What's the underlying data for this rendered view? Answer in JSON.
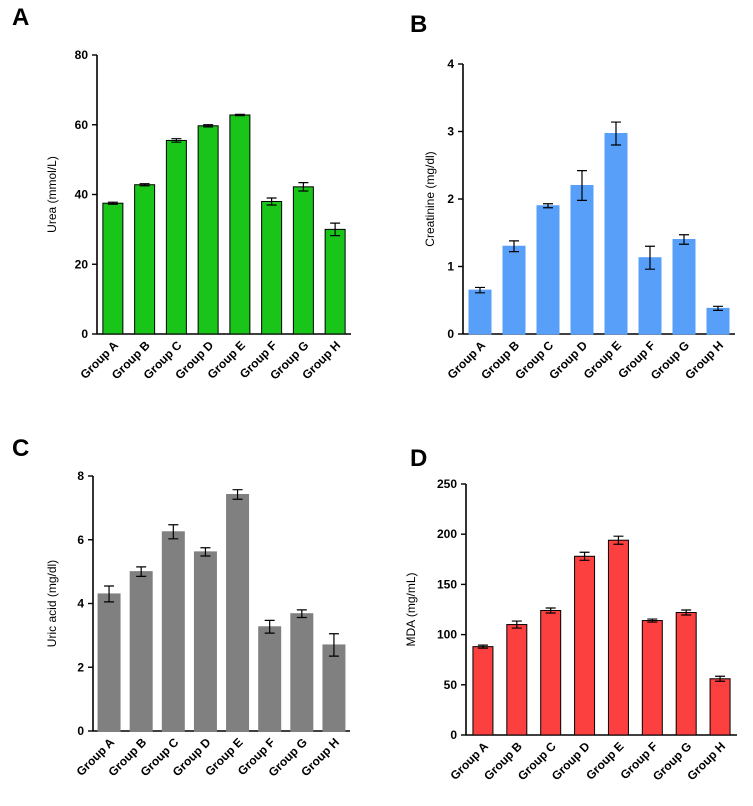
{
  "chart_data": [
    {
      "panel": "A",
      "type": "bar",
      "categories": [
        "Group A",
        "Group B",
        "Group C",
        "Group D",
        "Group E",
        "Group F",
        "Group G",
        "Group H"
      ],
      "values": [
        37.5,
        42.8,
        55.5,
        59.7,
        62.8,
        38.0,
        42.2,
        30.0
      ],
      "errors": [
        0.3,
        0.3,
        0.5,
        0.3,
        0.2,
        1.0,
        1.2,
        1.8
      ],
      "ylabel": "Urea  (mmol/L)",
      "ylim": [
        0,
        80
      ],
      "yticks": [
        0,
        20,
        40,
        60,
        80
      ],
      "bar_color": "#19c519",
      "bar_edge": "#000000"
    },
    {
      "panel": "B",
      "type": "bar",
      "categories": [
        "Group A",
        "Group B",
        "Group C",
        "Group D",
        "Group E",
        "Group F",
        "Group G",
        "Group H"
      ],
      "values": [
        0.65,
        1.3,
        1.9,
        2.2,
        2.97,
        1.13,
        1.4,
        0.38
      ],
      "errors": [
        0.04,
        0.08,
        0.03,
        0.22,
        0.17,
        0.17,
        0.07,
        0.03
      ],
      "ylabel": "Creatinine  (mg/dl)",
      "ylim": [
        0,
        4
      ],
      "yticks": [
        0,
        1,
        2,
        3,
        4
      ],
      "bar_color": "#579ff9",
      "bar_edge": "#579ff9"
    },
    {
      "panel": "C",
      "type": "bar",
      "categories": [
        "Group A",
        "Group B",
        "Group C",
        "Group D",
        "Group E",
        "Group F",
        "Group G",
        "Group H"
      ],
      "values": [
        4.3,
        5.0,
        6.25,
        5.62,
        7.42,
        3.27,
        3.68,
        2.7
      ],
      "errors": [
        0.25,
        0.15,
        0.22,
        0.13,
        0.15,
        0.2,
        0.12,
        0.35
      ],
      "ylabel": "Uric acid  (mg/dl)",
      "ylim": [
        0,
        8
      ],
      "yticks": [
        0,
        2,
        4,
        6,
        8
      ],
      "bar_color": "#808080",
      "bar_edge": "#808080"
    },
    {
      "panel": "D",
      "type": "bar",
      "categories": [
        "Group A",
        "Group B",
        "Group C",
        "Group D",
        "Group E",
        "Group F",
        "Group G",
        "Group H"
      ],
      "values": [
        88,
        110,
        124,
        178,
        194,
        114,
        122,
        56
      ],
      "errors": [
        1.5,
        3.5,
        2.5,
        4.0,
        4.0,
        1.5,
        2.5,
        2.5
      ],
      "ylabel": "MDA (mg/mL)",
      "ylim": [
        0,
        250
      ],
      "yticks": [
        0,
        50,
        100,
        150,
        200,
        250
      ],
      "bar_color": "#fc3f3f",
      "bar_edge": "#000000"
    }
  ]
}
